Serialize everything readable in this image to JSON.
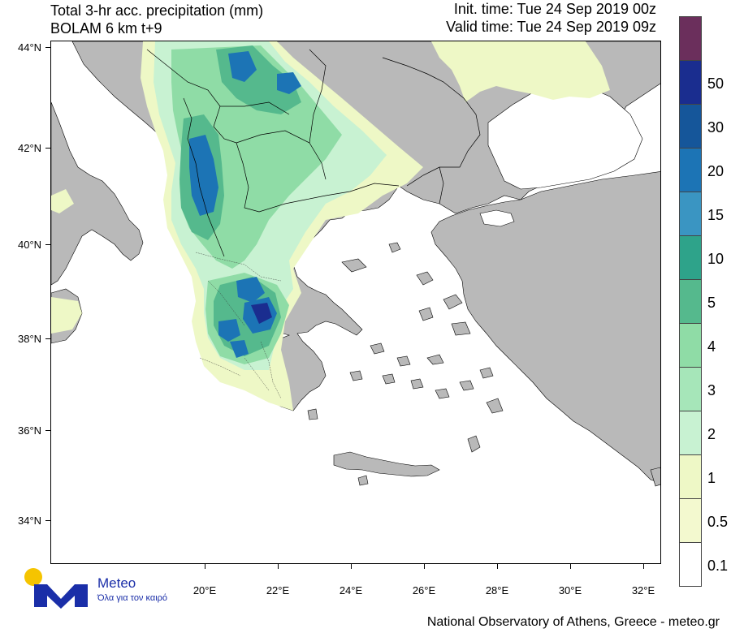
{
  "header": {
    "title_line1": "Total 3-hr acc. precipitation (mm)",
    "title_line2": "BOLAM 6 km t+9",
    "init_time": "Init. time: Tue 24 Sep 2019 00z",
    "valid_time": "Valid time: Tue 24 Sep 2019 09z"
  },
  "axes": {
    "lat_labels": [
      "44°N",
      "42°N",
      "40°N",
      "38°N",
      "36°N",
      "34°N"
    ],
    "lon_labels": [
      "20°E",
      "22°E",
      "24°E",
      "26°E",
      "28°E",
      "30°E",
      "32°E"
    ]
  },
  "colorbar": {
    "levels": [
      {
        "label": "",
        "color": "#6b2f5c"
      },
      {
        "label": "50",
        "color": "#1a2d8f"
      },
      {
        "label": "30",
        "color": "#15569a"
      },
      {
        "label": "20",
        "color": "#1c74b5"
      },
      {
        "label": "15",
        "color": "#3a95c2"
      },
      {
        "label": "10",
        "color": "#2ea38a"
      },
      {
        "label": "5",
        "color": "#55b98d"
      },
      {
        "label": "4",
        "color": "#8fdca6"
      },
      {
        "label": "3",
        "color": "#a6e6b9"
      },
      {
        "label": "2",
        "color": "#c8f2d2"
      },
      {
        "label": "1",
        "color": "#eef8c6"
      },
      {
        "label": "0.5",
        "color": "#f3f9cf"
      },
      {
        "label": "0.1",
        "color": "#ffffff"
      }
    ]
  },
  "colors": {
    "land": "#b9b9b9",
    "sea": "#ffffff",
    "precip_light": "#eef8c6",
    "precip_low": "#c8f2d2",
    "precip_mid": "#8fdca6",
    "precip_high": "#55b98d",
    "precip_heavy": "#2ea38a",
    "precip_very_heavy": "#1c74b5",
    "precip_extreme": "#1a2d8f"
  },
  "logo": {
    "brand": "Meteo",
    "tagline": "Όλα για τον καιρό"
  },
  "footer": {
    "credit": "National Observatory of Athens, Greece - meteo.gr"
  }
}
